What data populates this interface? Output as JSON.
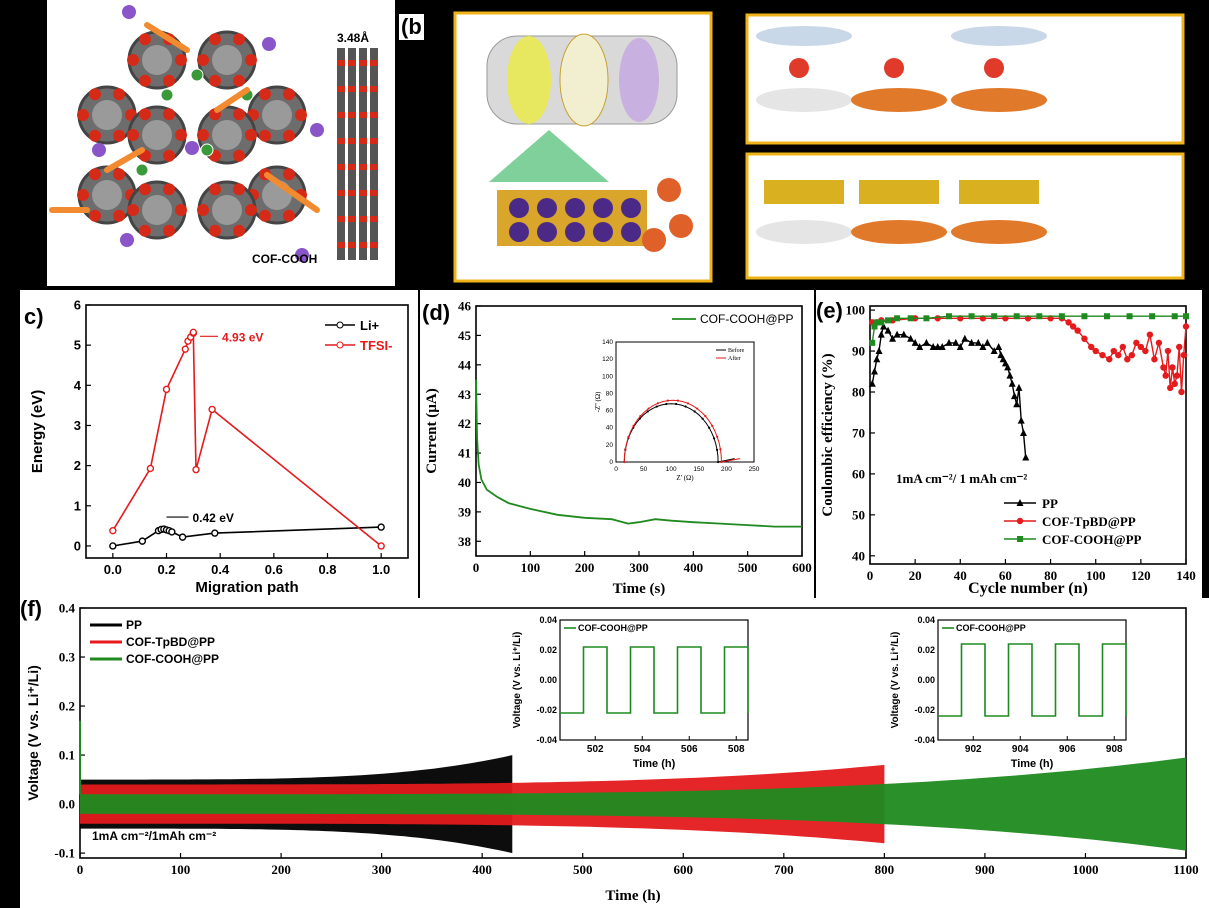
{
  "panel_labels": {
    "a": ")",
    "b": "(b",
    "c": "c)",
    "d": "(d)",
    "e": "(e)",
    "f": "(f)"
  },
  "panel_a": {
    "spacing_label": "3.48Å",
    "structure_label": "COF-COOH"
  },
  "colors": {
    "black": "#000000",
    "red": "#e41a1c",
    "green": "#1f8a1f",
    "orange": "#f28b30",
    "gold": "#f0b418"
  },
  "chart_data": [
    {
      "id": "c",
      "type": "line",
      "xlabel": "Migration path",
      "ylabel": "Energy (eV)",
      "xlim": [
        -0.1,
        1.1
      ],
      "ylim": [
        -0.3,
        6
      ],
      "xticks": [
        "0.0",
        "0.2",
        "0.4",
        "0.6",
        "0.8",
        "1.0"
      ],
      "yticks": [
        "0",
        "1",
        "2",
        "3",
        "4",
        "5",
        "6"
      ],
      "legend_position": "top-right",
      "series": [
        {
          "name": "Li+",
          "color": "#000000",
          "x": [
            0.0,
            0.11,
            0.17,
            0.18,
            0.19,
            0.2,
            0.21,
            0.22,
            0.26,
            0.38,
            1.0
          ],
          "y": [
            0.0,
            0.12,
            0.38,
            0.41,
            0.42,
            0.4,
            0.38,
            0.35,
            0.22,
            0.32,
            0.47
          ]
        },
        {
          "name": "TFSI-",
          "color": "#e41a1c",
          "x": [
            0.0,
            0.14,
            0.2,
            0.27,
            0.28,
            0.29,
            0.3,
            0.3,
            0.31,
            0.37,
            1.0
          ],
          "y": [
            0.38,
            1.93,
            3.9,
            4.9,
            5.1,
            5.2,
            5.3,
            5.32,
            1.9,
            3.4,
            0.0
          ]
        }
      ],
      "annotations": [
        "4.93 eV",
        "0.42 eV"
      ]
    },
    {
      "id": "d",
      "type": "line",
      "xlabel": "Time (s)",
      "ylabel": "Current (µA)",
      "xlim": [
        0,
        600
      ],
      "ylim": [
        37.5,
        46
      ],
      "xticks": [
        "0",
        "100",
        "200",
        "300",
        "400",
        "500",
        "600"
      ],
      "yticks": [
        "38",
        "39",
        "40",
        "41",
        "42",
        "43",
        "44",
        "45",
        "46"
      ],
      "legend_position": "top-right",
      "series": [
        {
          "name": "COF-COOH@PP",
          "color": "#1f8a1f",
          "x": [
            0,
            2,
            5,
            10,
            20,
            40,
            60,
            100,
            150,
            200,
            250,
            280,
            300,
            330,
            360,
            400,
            450,
            500,
            550,
            600
          ],
          "y": [
            43.5,
            41.5,
            40.6,
            40.1,
            39.75,
            39.5,
            39.3,
            39.1,
            38.9,
            38.8,
            38.75,
            38.6,
            38.65,
            38.75,
            38.7,
            38.65,
            38.6,
            38.55,
            38.5,
            38.5
          ]
        }
      ],
      "inset": {
        "xlabel": "Z' (Ω)",
        "ylabel": "-Z'' (Ω)",
        "xlim": [
          0,
          250
        ],
        "ylim": [
          0,
          140
        ],
        "xticks": [
          "0",
          "50",
          "100",
          "150",
          "200",
          "250"
        ],
        "yticks": [
          "0",
          "20",
          "40",
          "60",
          "80",
          "100",
          "120",
          "140"
        ],
        "series": [
          {
            "name": "Before",
            "color": "#000000",
            "center": 100,
            "radius": 85,
            "height": 68,
            "tail_end": 215
          },
          {
            "name": "After",
            "color": "#e41a1c",
            "center": 103,
            "radius": 88,
            "height": 72,
            "tail_end": 225
          }
        ]
      }
    },
    {
      "id": "e",
      "type": "line",
      "xlabel": "Cycle number (n)",
      "ylabel": "Coulombic efficiency (%)",
      "xlim": [
        0,
        140
      ],
      "ylim": [
        38,
        101
      ],
      "xticks": [
        "0",
        "20",
        "40",
        "60",
        "80",
        "100",
        "120",
        "140"
      ],
      "yticks": [
        "40",
        "50",
        "60",
        "70",
        "80",
        "90",
        "100"
      ],
      "annotation": "1mA cm⁻²/ 1 mAh cm⁻²",
      "legend_position": "bottom-right",
      "series": [
        {
          "name": "PP",
          "color": "#000000",
          "marker": "triangle",
          "x": [
            1,
            2,
            3,
            4,
            5,
            6,
            8,
            10,
            12,
            15,
            18,
            20,
            22,
            25,
            28,
            30,
            32,
            35,
            38,
            40,
            42,
            45,
            48,
            50,
            52,
            55,
            57,
            58,
            59,
            60,
            61,
            62,
            63,
            64,
            65,
            66,
            67,
            68,
            69
          ],
          "y": [
            82,
            85,
            88,
            90,
            94,
            96,
            95,
            93,
            94,
            94,
            93,
            92,
            91,
            92,
            91,
            91,
            91,
            92,
            92,
            91,
            93,
            92,
            92,
            91,
            92,
            90,
            91,
            89,
            88,
            87,
            86,
            84,
            82,
            79,
            77,
            81,
            73,
            70,
            64
          ]
        },
        {
          "name": "COF-TpBD@PP",
          "color": "#e41a1c",
          "marker": "circle",
          "x": [
            1,
            3,
            5,
            10,
            20,
            30,
            40,
            50,
            60,
            70,
            80,
            85,
            88,
            90,
            92,
            95,
            98,
            100,
            103,
            106,
            108,
            110,
            112,
            114,
            116,
            118,
            120,
            122,
            124,
            126,
            128,
            130,
            131,
            132,
            133,
            134,
            135,
            136,
            137,
            138,
            139,
            140
          ],
          "y": [
            97,
            97,
            97.5,
            97.5,
            98,
            98,
            98,
            98,
            98,
            98,
            98,
            98,
            97,
            96,
            95,
            93,
            91,
            90,
            89,
            88,
            90,
            89,
            91,
            88,
            89,
            92,
            91,
            90,
            94,
            88,
            92,
            86,
            84,
            90,
            81,
            86,
            82,
            84,
            91,
            80,
            89,
            96
          ]
        },
        {
          "name": "COF-COOH@PP",
          "color": "#1f8a1f",
          "marker": "square",
          "x": [
            1,
            2,
            3,
            5,
            8,
            12,
            18,
            25,
            35,
            45,
            55,
            65,
            75,
            85,
            95,
            105,
            115,
            125,
            135,
            140
          ],
          "y": [
            92,
            96,
            97,
            97,
            97.5,
            98,
            98,
            98,
            98.5,
            98.5,
            98.5,
            98.5,
            98.5,
            98.5,
            98.5,
            98.5,
            98.5,
            98.5,
            98.5,
            98.5
          ]
        }
      ]
    },
    {
      "id": "f",
      "type": "line",
      "xlabel": "Time (h)",
      "ylabel": "Voltage (V vs. Li⁺/Li)",
      "xlim": [
        0,
        1100
      ],
      "ylim": [
        -0.11,
        0.4
      ],
      "xticks": [
        "0",
        "100",
        "200",
        "300",
        "400",
        "500",
        "600",
        "700",
        "800",
        "900",
        "1000",
        "1100"
      ],
      "yticks": [
        "-0.1",
        "0.0",
        "0.1",
        "0.2",
        "0.3",
        "0.4"
      ],
      "annotation": "1mA cm⁻²/1mAh cm⁻²",
      "legend_position": "top-left",
      "series": [
        {
          "name": "PP",
          "color": "#000000",
          "end_time": 430,
          "amplitude_start": 0.05,
          "amplitude_end": 0.1
        },
        {
          "name": "COF-TpBD@PP",
          "color": "#e41a1c",
          "end_time": 800,
          "amplitude_start": 0.04,
          "amplitude_end": 0.08
        },
        {
          "name": "COF-COOH@PP",
          "color": "#1f8a1f",
          "end_time": 1100,
          "amplitude_start": 0.02,
          "amplitude_end": 0.095
        }
      ],
      "insets": [
        {
          "label": "COF-COOH@PP",
          "xlabel": "Time (h)",
          "ylabel": "Voltage (V vs. Li⁺/Li)",
          "xlim": [
            500.5,
            508.5
          ],
          "ylim": [
            -0.04,
            0.04
          ],
          "xticks": [
            "502",
            "504",
            "506",
            "508"
          ],
          "yticks": [
            "-0.04",
            "-0.02",
            "0.00",
            "0.02",
            "0.04"
          ],
          "amplitude": 0.022
        },
        {
          "label": "COF-COOH@PP",
          "xlabel": "Time (h)",
          "ylabel": "Voltage (V vs. Li⁺/Li)",
          "xlim": [
            900.5,
            908.5
          ],
          "ylim": [
            -0.04,
            0.04
          ],
          "xticks": [
            "902",
            "904",
            "906",
            "908"
          ],
          "yticks": [
            "-0.04",
            "-0.02",
            "0.00",
            "0.02",
            "0.04"
          ],
          "amplitude": 0.024
        }
      ]
    }
  ]
}
